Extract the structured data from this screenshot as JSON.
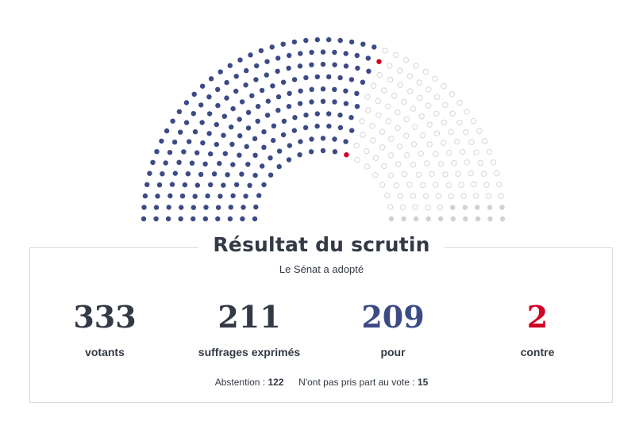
{
  "colors": {
    "pour": "#3c4b86",
    "contre": "#d10024",
    "abstention": "#cfd1d4",
    "absent_stroke": "#d5d7da",
    "text": "#333a45"
  },
  "hemicycle": {
    "total_seats": 348,
    "rows": 10,
    "counts": {
      "pour": 209,
      "contre": 2,
      "abstention": 122,
      "nppv": 15
    }
  },
  "result": {
    "title": "Résultat du scrutin",
    "outcome": "Le Sénat a adopté",
    "stats": [
      {
        "value": "333",
        "label": "votants",
        "color": "#333a45"
      },
      {
        "value": "211",
        "label": "suffrages exprimés",
        "color": "#333a45"
      },
      {
        "value": "209",
        "label": "pour",
        "color": "#3c4b86"
      },
      {
        "value": "2",
        "label": "contre",
        "color": "#d10024"
      }
    ],
    "abstention_label": "Abstention :",
    "abstention_value": "122",
    "nppv_label": "N'ont pas pris part au vote :",
    "nppv_value": "15"
  }
}
